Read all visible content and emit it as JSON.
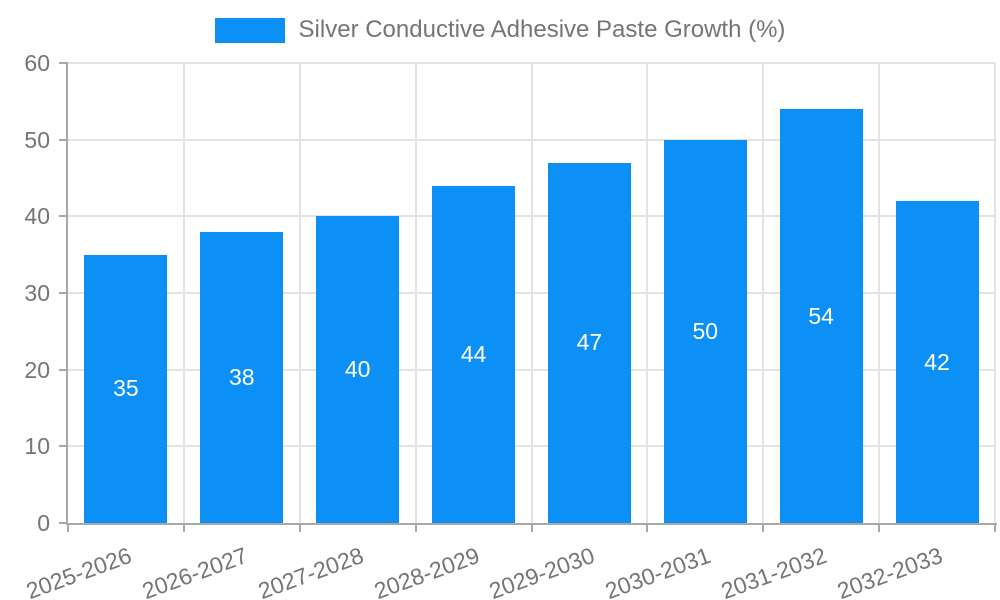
{
  "chart_data": {
    "type": "bar",
    "title": "Silver Conductive Adhesive Paste Growth (%)",
    "categories": [
      "2025-2026",
      "2026-2027",
      "2027-2028",
      "2028-2029",
      "2029-2030",
      "2030-2031",
      "2031-2032",
      "2032-2033"
    ],
    "values": [
      35,
      38,
      40,
      44,
      47,
      50,
      54,
      42
    ],
    "yticks": [
      0,
      10,
      20,
      30,
      40,
      50,
      60
    ],
    "ylim": [
      0,
      60
    ],
    "xlabel": "",
    "ylabel": "",
    "grid": true,
    "legend_position": "top-center",
    "x_tick_rotation_deg": 20,
    "value_label_style": "white-centered-inside-bar",
    "colors": {
      "bar": "#0d90f5",
      "grid": "#e3e3e3",
      "axis": "#a8a8a8",
      "tick_text": "#757575",
      "value_text": "#ffffff",
      "background": "#ffffff"
    }
  }
}
